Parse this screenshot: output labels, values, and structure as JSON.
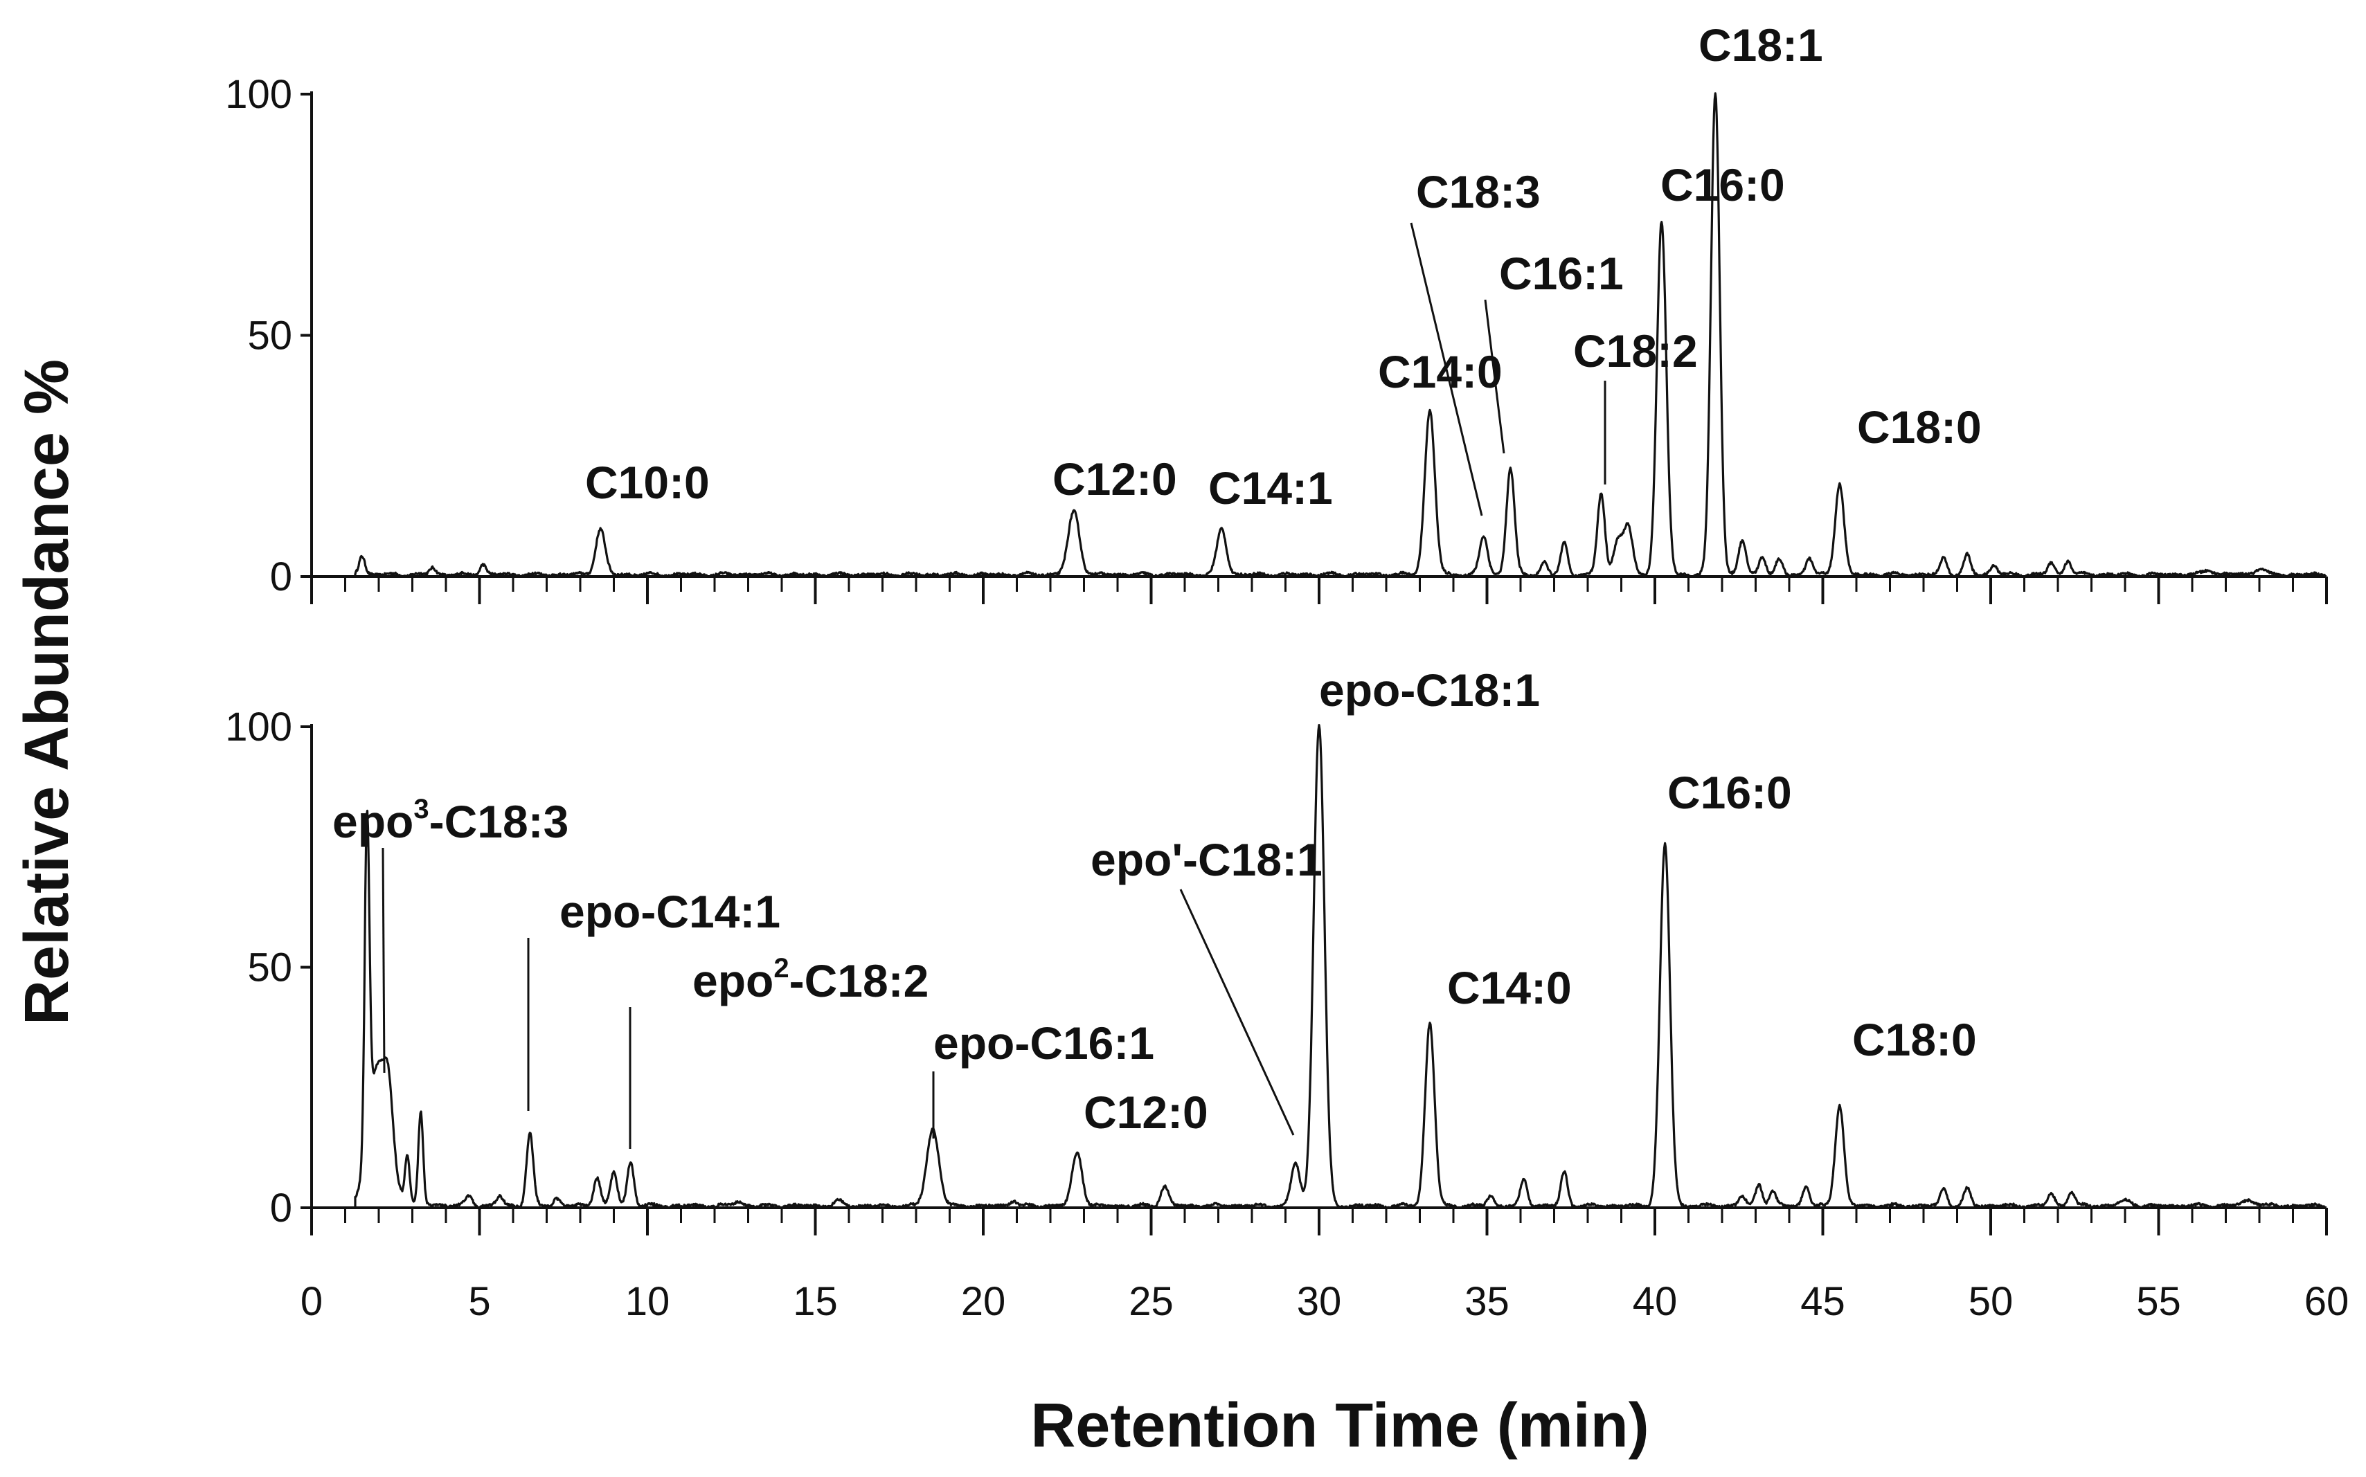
{
  "chart_data": {
    "type": "line",
    "xlabel": "Retention Time (min)",
    "ylabel": "Relative Abundance %",
    "xlim": [
      0,
      60
    ],
    "ylim": [
      0,
      100
    ],
    "x_ticks": [
      "0",
      "5",
      "10",
      "15",
      "20",
      "25",
      "30",
      "35",
      "40",
      "45",
      "50",
      "55",
      "60"
    ],
    "y_ticks": [
      "0",
      "50",
      "100"
    ],
    "grid": false,
    "panels": [
      {
        "id": "A",
        "peaks": [
          {
            "rt": 1.5,
            "height": 4,
            "width": 0.09
          },
          {
            "rt": 3.6,
            "height": 1.5,
            "width": 0.09
          },
          {
            "rt": 5.1,
            "height": 2.2,
            "width": 0.09
          },
          {
            "rt": 8.6,
            "height": 9.5,
            "width": 0.14,
            "label": "C10:0"
          },
          {
            "rt": 22.7,
            "height": 13,
            "width": 0.17,
            "label": "C12:0"
          },
          {
            "rt": 27.1,
            "height": 9.5,
            "width": 0.14,
            "label": "C14:1"
          },
          {
            "rt": 33.3,
            "height": 34,
            "width": 0.15,
            "label": "C14:0"
          },
          {
            "rt": 34.9,
            "height": 8,
            "width": 0.12,
            "label": "C18:3"
          },
          {
            "rt": 35.7,
            "height": 22,
            "width": 0.12,
            "label": "C16:1"
          },
          {
            "rt": 36.7,
            "height": 2.5,
            "width": 0.1
          },
          {
            "rt": 37.3,
            "height": 6.5,
            "width": 0.1
          },
          {
            "rt": 38.4,
            "height": 17,
            "width": 0.11,
            "label": "C18:2"
          },
          {
            "rt": 38.9,
            "height": 7,
            "width": 0.13
          },
          {
            "rt": 39.2,
            "height": 10,
            "width": 0.13
          },
          {
            "rt": 40.2,
            "height": 73,
            "width": 0.14,
            "label": "C16:0"
          },
          {
            "rt": 41.8,
            "height": 100,
            "width": 0.13,
            "label": "C18:1"
          },
          {
            "rt": 42.6,
            "height": 7,
            "width": 0.11
          },
          {
            "rt": 43.2,
            "height": 4,
            "width": 0.1
          },
          {
            "rt": 43.7,
            "height": 3,
            "width": 0.1
          },
          {
            "rt": 44.6,
            "height": 3.5,
            "width": 0.1
          },
          {
            "rt": 45.5,
            "height": 19,
            "width": 0.13,
            "label": "C18:0"
          },
          {
            "rt": 48.6,
            "height": 3.5,
            "width": 0.1
          },
          {
            "rt": 49.3,
            "height": 4,
            "width": 0.1
          },
          {
            "rt": 50.1,
            "height": 2,
            "width": 0.1
          },
          {
            "rt": 51.8,
            "height": 2.5,
            "width": 0.1
          },
          {
            "rt": 52.3,
            "height": 3,
            "width": 0.1
          },
          {
            "rt": 56.5,
            "height": 1,
            "width": 0.15
          },
          {
            "rt": 58.0,
            "height": 1.2,
            "width": 0.15
          }
        ]
      },
      {
        "id": "B",
        "peaks": [
          {
            "rt": 1.65,
            "height": 66,
            "width": 0.07
          },
          {
            "rt": 2.0,
            "height": 28,
            "width": 0.3,
            "label": "epo³-C18:3"
          },
          {
            "rt": 2.3,
            "height": 10,
            "width": 0.12
          },
          {
            "rt": 2.85,
            "height": 10,
            "width": 0.07
          },
          {
            "rt": 3.25,
            "height": 19,
            "width": 0.07
          },
          {
            "rt": 4.7,
            "height": 2,
            "width": 0.1
          },
          {
            "rt": 5.6,
            "height": 2,
            "width": 0.1
          },
          {
            "rt": 6.5,
            "height": 15,
            "width": 0.1,
            "label": "epo-C14:1"
          },
          {
            "rt": 7.3,
            "height": 1.5,
            "width": 0.1
          },
          {
            "rt": 8.5,
            "height": 6,
            "width": 0.1
          },
          {
            "rt": 9.0,
            "height": 7,
            "width": 0.1
          },
          {
            "rt": 9.5,
            "height": 9,
            "width": 0.1,
            "label": "epo²-C18:2"
          },
          {
            "rt": 12.7,
            "height": 1,
            "width": 0.12
          },
          {
            "rt": 15.7,
            "height": 1,
            "width": 0.12
          },
          {
            "rt": 18.5,
            "height": 16,
            "width": 0.18,
            "label": "epo-C16:1"
          },
          {
            "rt": 20.9,
            "height": 1.2,
            "width": 0.1
          },
          {
            "rt": 22.8,
            "height": 11,
            "width": 0.15,
            "label": "C12:0"
          },
          {
            "rt": 25.4,
            "height": 4,
            "width": 0.12
          },
          {
            "rt": 29.3,
            "height": 9,
            "width": 0.13,
            "label": "epo'-C18:1"
          },
          {
            "rt": 30.0,
            "height": 100,
            "width": 0.16,
            "label": "epo-C18:1"
          },
          {
            "rt": 33.3,
            "height": 38,
            "width": 0.14,
            "label": "C14:0"
          },
          {
            "rt": 35.1,
            "height": 2,
            "width": 0.1
          },
          {
            "rt": 36.1,
            "height": 5.5,
            "width": 0.1
          },
          {
            "rt": 37.3,
            "height": 7,
            "width": 0.1
          },
          {
            "rt": 40.3,
            "height": 75,
            "width": 0.15,
            "label": "C16:0"
          },
          {
            "rt": 42.6,
            "height": 2,
            "width": 0.1
          },
          {
            "rt": 43.1,
            "height": 4.5,
            "width": 0.1
          },
          {
            "rt": 43.5,
            "height": 3,
            "width": 0.1
          },
          {
            "rt": 44.5,
            "height": 4,
            "width": 0.1
          },
          {
            "rt": 45.5,
            "height": 21,
            "width": 0.13,
            "label": "C18:0"
          },
          {
            "rt": 48.6,
            "height": 3.5,
            "width": 0.1
          },
          {
            "rt": 49.3,
            "height": 3.5,
            "width": 0.1
          },
          {
            "rt": 51.8,
            "height": 2.5,
            "width": 0.1
          },
          {
            "rt": 52.4,
            "height": 3,
            "width": 0.1
          },
          {
            "rt": 54.0,
            "height": 1,
            "width": 0.2
          },
          {
            "rt": 57.7,
            "height": 1.2,
            "width": 0.2
          }
        ]
      }
    ]
  }
}
